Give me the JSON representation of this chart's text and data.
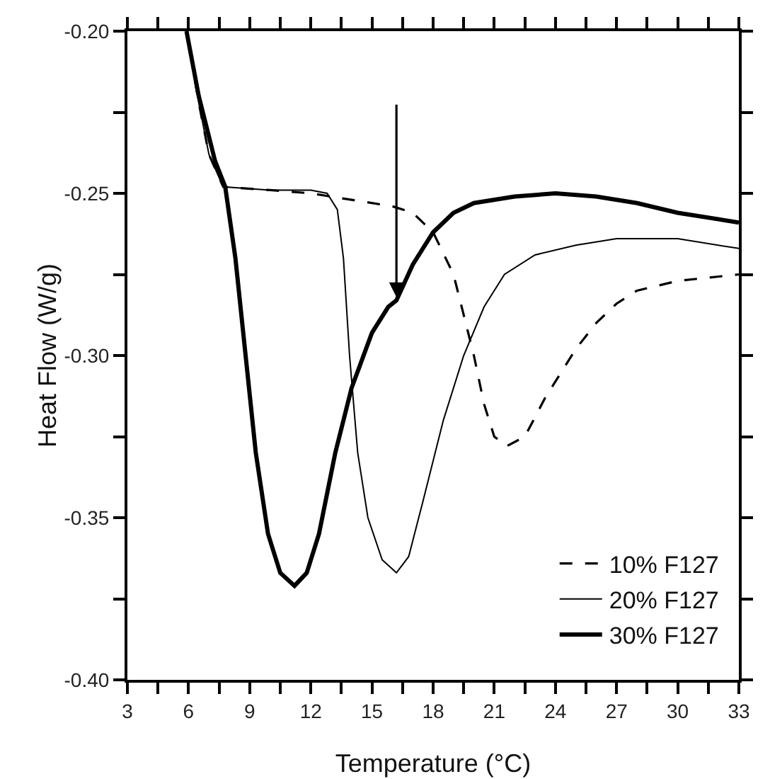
{
  "chart_data": {
    "type": "line",
    "xlabel": "Temperature (°C)",
    "ylabel": "Heat Flow (W/g)",
    "xlim": [
      3,
      33
    ],
    "xticks": [
      3,
      {
        "value": 4.5,
        "label": null
      },
      6,
      {
        "value": 7.5,
        "label": null
      },
      9,
      {
        "value": 10.5,
        "label": null
      },
      12,
      {
        "value": 13.5,
        "label": null
      },
      15,
      {
        "value": 16.5,
        "label": null
      },
      18,
      {
        "value": 19.5,
        "label": null
      },
      21,
      {
        "value": 22.5,
        "label": null
      },
      24,
      {
        "value": 25.5,
        "label": null
      },
      27,
      {
        "value": 28.5,
        "label": null
      },
      30,
      {
        "value": 31.5,
        "label": null
      },
      33
    ],
    "ylim": [
      -0.4,
      -0.2
    ],
    "yticks": [
      {
        "value": -0.4,
        "label": "-0.40"
      },
      {
        "value": -0.375,
        "label": null
      },
      {
        "value": -0.35,
        "label": "-0.35"
      },
      {
        "value": -0.325,
        "label": null
      },
      {
        "value": -0.3,
        "label": "-0.30"
      },
      {
        "value": -0.275,
        "label": null
      },
      {
        "value": -0.25,
        "label": "-0.25"
      },
      {
        "value": -0.225,
        "label": null
      },
      {
        "value": -0.2,
        "label": "-0.20"
      }
    ],
    "grid": false,
    "legend": "bottom right",
    "marker": "none",
    "series": [
      {
        "name": "10% F127",
        "color": "#000000",
        "line_style": "dashed",
        "x": [
          5.9,
          6.5,
          7.0,
          7.7,
          10,
          12,
          14,
          16,
          17,
          18,
          19,
          20,
          20.5,
          21,
          21.6,
          22.5,
          23.5,
          25,
          26,
          27,
          28,
          30,
          33
        ],
        "values": [
          -0.2,
          -0.222,
          -0.238,
          -0.248,
          -0.249,
          -0.25,
          -0.252,
          -0.254,
          -0.256,
          -0.262,
          -0.275,
          -0.3,
          -0.315,
          -0.325,
          -0.328,
          -0.325,
          -0.313,
          -0.298,
          -0.29,
          -0.284,
          -0.28,
          -0.277,
          -0.275
        ]
      },
      {
        "name": "20% F127",
        "color": "#000000",
        "line_style": "solid",
        "x": [
          5.9,
          6.5,
          7.0,
          7.7,
          10,
          12,
          12.8,
          13.3,
          13.6,
          13.9,
          14.3,
          14.8,
          15.5,
          16.2,
          16.8,
          17.5,
          18.5,
          19.5,
          20.5,
          21.5,
          23,
          25,
          27,
          30,
          33
        ],
        "values": [
          -0.2,
          -0.222,
          -0.238,
          -0.248,
          -0.249,
          -0.249,
          -0.25,
          -0.255,
          -0.27,
          -0.3,
          -0.33,
          -0.35,
          -0.363,
          -0.367,
          -0.362,
          -0.345,
          -0.32,
          -0.3,
          -0.285,
          -0.275,
          -0.269,
          -0.266,
          -0.264,
          -0.264,
          -0.267
        ]
      },
      {
        "name": "30% F127",
        "color": "#000000",
        "line_style": "solid",
        "x": [
          5.9,
          6.5,
          7.3,
          7.8,
          8.3,
          8.8,
          9.3,
          9.9,
          10.5,
          11.2,
          11.8,
          12.4,
          13.2,
          14,
          15,
          15.8,
          16.2,
          17,
          18,
          19,
          20,
          22,
          24,
          26,
          28,
          30,
          33
        ],
        "values": [
          -0.2,
          -0.22,
          -0.24,
          -0.248,
          -0.27,
          -0.3,
          -0.33,
          -0.355,
          -0.367,
          -0.371,
          -0.367,
          -0.355,
          -0.33,
          -0.31,
          -0.293,
          -0.285,
          -0.283,
          -0.272,
          -0.262,
          -0.256,
          -0.253,
          -0.251,
          -0.25,
          -0.251,
          -0.253,
          -0.256,
          -0.259
        ]
      }
    ]
  }
}
